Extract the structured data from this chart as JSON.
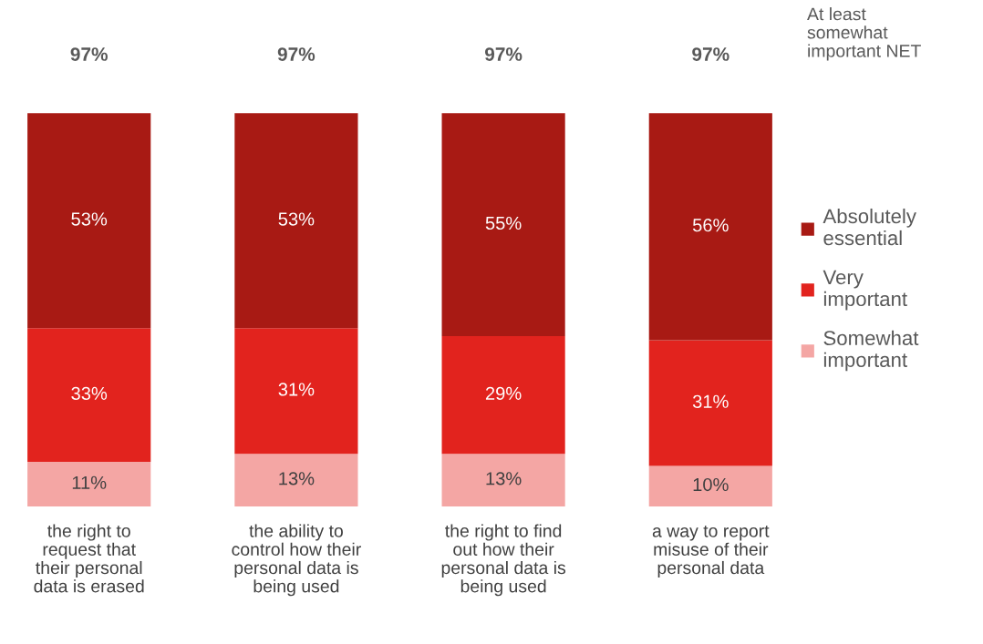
{
  "chart_data": {
    "type": "bar",
    "stacked": true,
    "categories": [
      "the right to\nrequest that\ntheir personal\ndata is erased",
      "the ability to\ncontrol how their\npersonal data is\nbeing used",
      "the right to find\nout how their\npersonal data is\nbeing used",
      "a way to report\nmisuse of their\npersonal data"
    ],
    "series": [
      {
        "name": "Somewhat\nimportant",
        "color": "#f4a6a4",
        "values": [
          11,
          13,
          13,
          10
        ],
        "value_labels": [
          "11%",
          "13%",
          "13%",
          "10%"
        ]
      },
      {
        "name": "Very\nimportant",
        "color": "#e2231e",
        "values": [
          33,
          31,
          29,
          31
        ],
        "value_labels": [
          "33%",
          "31%",
          "29%",
          "31%"
        ]
      },
      {
        "name": "Absolutely\nessential",
        "color": "#a81a14",
        "values": [
          53,
          53,
          55,
          56
        ],
        "value_labels": [
          "53%",
          "53%",
          "55%",
          "56%"
        ]
      }
    ],
    "totals": [
      "97%",
      "97%",
      "97%",
      "97%"
    ],
    "annotations": [
      "At least\nsomewhat\nimportant NET"
    ],
    "legend": "right",
    "grid": false,
    "tick_labels": "x"
  }
}
